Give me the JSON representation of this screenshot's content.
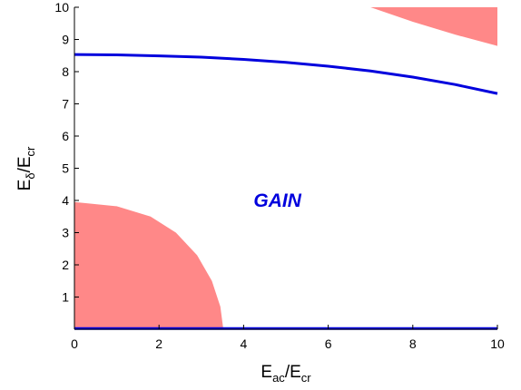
{
  "chart_data": {
    "type": "area",
    "xlim": [
      0,
      10
    ],
    "ylim": [
      0,
      10
    ],
    "xticks": [
      "0",
      "2",
      "4",
      "6",
      "8",
      "10"
    ],
    "yticks": [
      "1",
      "2",
      "3",
      "4",
      "5",
      "6",
      "7",
      "8",
      "9",
      "10"
    ],
    "xlabel": {
      "main": "E",
      "sub": "ac",
      "slash": "/E",
      "sub2": "cr"
    },
    "ylabel": {
      "main": "E",
      "sub": "δ",
      "slash": "/E",
      "sub2": "cr"
    },
    "annotation": {
      "text": "GAIN",
      "x": 4.8,
      "y": 4.0,
      "color": "#0000dd"
    },
    "grid": false,
    "regions": [
      {
        "color": "#ff8888",
        "points": [
          [
            0,
            3.95
          ],
          [
            1.0,
            3.82
          ],
          [
            1.8,
            3.5
          ],
          [
            2.4,
            3.0
          ],
          [
            2.9,
            2.3
          ],
          [
            3.25,
            1.5
          ],
          [
            3.45,
            0.7
          ],
          [
            3.52,
            0
          ],
          [
            0,
            0
          ]
        ]
      },
      {
        "color": "#ff8888",
        "points": [
          [
            7.0,
            10
          ],
          [
            10,
            10
          ],
          [
            10,
            8.8
          ],
          [
            9.0,
            9.15
          ],
          [
            8.0,
            9.55
          ],
          [
            7.0,
            10
          ]
        ]
      }
    ],
    "lines": [
      {
        "color": "#0000dd",
        "points": [
          [
            0,
            8.53
          ],
          [
            1,
            8.52
          ],
          [
            2,
            8.49
          ],
          [
            3,
            8.45
          ],
          [
            4,
            8.38
          ],
          [
            5,
            8.29
          ],
          [
            6,
            8.17
          ],
          [
            7,
            8.02
          ],
          [
            8,
            7.83
          ],
          [
            9,
            7.6
          ],
          [
            10,
            7.32
          ]
        ]
      },
      {
        "color": "#0000dd",
        "points": [
          [
            0,
            0.02
          ],
          [
            10,
            0.02
          ]
        ]
      }
    ]
  }
}
